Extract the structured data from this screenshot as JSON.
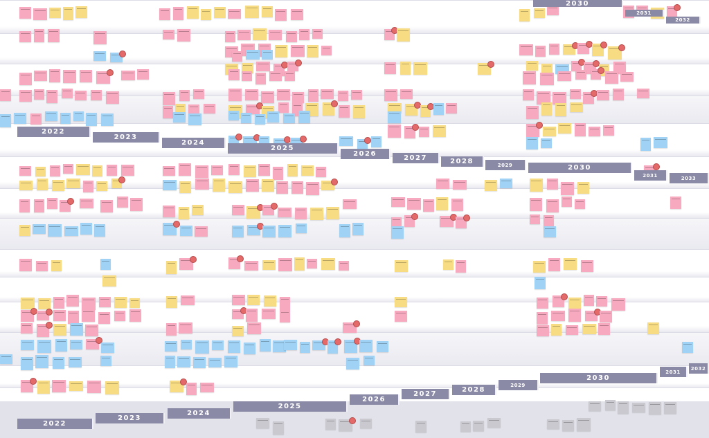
{
  "timeline_bands": [
    {
      "band": "upper",
      "years": [
        "2022",
        "2023",
        "2024",
        "2025",
        "2026",
        "2027",
        "2028",
        "2029",
        "2030",
        "2031",
        "2033"
      ]
    },
    {
      "band": "middle-top",
      "years": [
        "2030",
        "2031",
        "2032"
      ]
    },
    {
      "band": "lower",
      "years": [
        "2022",
        "2023",
        "2024",
        "2025",
        "2026",
        "2027",
        "2028",
        "2029",
        "2030",
        "2031",
        "2032"
      ]
    }
  ],
  "colors": {
    "pink": "#f6a9bf",
    "yellow": "#f7dc83",
    "blue": "#9fd2f4",
    "gray": "#c9c9cf",
    "year_bar": "#8a8aa6",
    "sticker": "#e46a6a"
  }
}
